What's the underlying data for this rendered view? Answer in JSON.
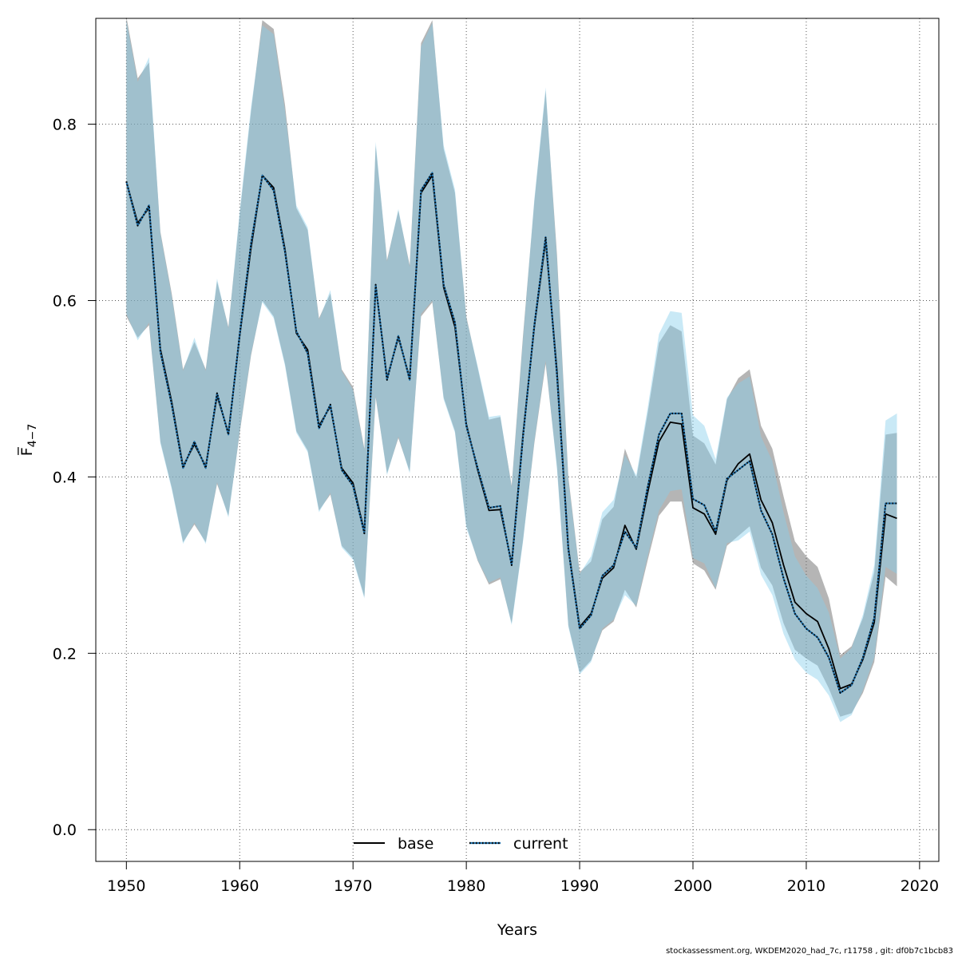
{
  "chart_data": {
    "type": "line",
    "xlabel": "Years",
    "ylabel": "F̅",
    "ylabel_sub": "4−7",
    "xlim": [
      1947.3,
      2021.7
    ],
    "ylim": [
      -0.036,
      0.92
    ],
    "x_ticks": [
      1950,
      1960,
      1970,
      1980,
      1990,
      2000,
      2010,
      2020
    ],
    "y_ticks": [
      0.0,
      0.2,
      0.4,
      0.6,
      0.8
    ],
    "y_tick_labels": [
      "0.0",
      "0.2",
      "0.4",
      "0.6",
      "0.8"
    ],
    "grid": true,
    "legend_placement": "bottom",
    "years": [
      1950,
      1951,
      1952,
      1953,
      1954,
      1955,
      1956,
      1957,
      1958,
      1959,
      1960,
      1961,
      1962,
      1963,
      1964,
      1965,
      1966,
      1967,
      1968,
      1969,
      1970,
      1971,
      1972,
      1973,
      1974,
      1975,
      1976,
      1977,
      1978,
      1979,
      1980,
      1981,
      1982,
      1983,
      1984,
      1985,
      1986,
      1987,
      1988,
      1989,
      1990,
      1991,
      1992,
      1993,
      1994,
      1995,
      1996,
      1997,
      1998,
      1999,
      2000,
      2001,
      2002,
      2003,
      2004,
      2005,
      2006,
      2007,
      2008,
      2009,
      2010,
      2011,
      2012,
      2013,
      2014,
      2015,
      2016,
      2017,
      2018
    ],
    "series": [
      {
        "name": "base",
        "color": "#000000",
        "band_color": "#6b6b6b",
        "line_style": "solid",
        "values": [
          0.735,
          0.688,
          0.705,
          0.545,
          0.485,
          0.412,
          0.437,
          0.412,
          0.492,
          0.45,
          0.56,
          0.66,
          0.742,
          0.728,
          0.658,
          0.563,
          0.544,
          0.458,
          0.48,
          0.41,
          0.393,
          0.338,
          0.617,
          0.512,
          0.558,
          0.512,
          0.722,
          0.742,
          0.615,
          0.57,
          0.46,
          0.408,
          0.362,
          0.363,
          0.302,
          0.448,
          0.57,
          0.668,
          0.52,
          0.32,
          0.23,
          0.245,
          0.285,
          0.297,
          0.345,
          0.318,
          0.382,
          0.44,
          0.462,
          0.46,
          0.365,
          0.358,
          0.335,
          0.396,
          0.415,
          0.426,
          0.374,
          0.348,
          0.3,
          0.258,
          0.245,
          0.236,
          0.205,
          0.16,
          0.165,
          0.193,
          0.235,
          0.358,
          0.353
        ],
        "lower": [
          0.582,
          0.558,
          0.572,
          0.44,
          0.388,
          0.326,
          0.346,
          0.326,
          0.392,
          0.356,
          0.45,
          0.538,
          0.6,
          0.582,
          0.528,
          0.452,
          0.43,
          0.362,
          0.38,
          0.322,
          0.308,
          0.264,
          0.49,
          0.404,
          0.444,
          0.406,
          0.582,
          0.598,
          0.49,
          0.452,
          0.345,
          0.305,
          0.278,
          0.284,
          0.234,
          0.328,
          0.438,
          0.528,
          0.412,
          0.232,
          0.178,
          0.192,
          0.226,
          0.236,
          0.272,
          0.252,
          0.305,
          0.356,
          0.372,
          0.372,
          0.302,
          0.294,
          0.272,
          0.322,
          0.333,
          0.344,
          0.297,
          0.277,
          0.234,
          0.204,
          0.194,
          0.186,
          0.16,
          0.128,
          0.132,
          0.155,
          0.19,
          0.287,
          0.276
        ],
        "upper": [
          0.922,
          0.852,
          0.87,
          0.678,
          0.608,
          0.522,
          0.553,
          0.522,
          0.622,
          0.57,
          0.698,
          0.815,
          0.918,
          0.908,
          0.822,
          0.705,
          0.68,
          0.58,
          0.608,
          0.522,
          0.502,
          0.432,
          0.776,
          0.646,
          0.702,
          0.64,
          0.892,
          0.918,
          0.772,
          0.722,
          0.582,
          0.524,
          0.465,
          0.468,
          0.39,
          0.56,
          0.712,
          0.838,
          0.652,
          0.4,
          0.292,
          0.304,
          0.352,
          0.366,
          0.432,
          0.398,
          0.472,
          0.552,
          0.572,
          0.565,
          0.447,
          0.438,
          0.414,
          0.488,
          0.512,
          0.522,
          0.458,
          0.432,
          0.378,
          0.327,
          0.31,
          0.298,
          0.262,
          0.198,
          0.208,
          0.24,
          0.292,
          0.448,
          0.45
        ]
      },
      {
        "name": "current",
        "color": "#000000",
        "dot_color": "#1f6fa8",
        "band_color": "#87ceeb",
        "line_style": "dotted",
        "values": [
          0.735,
          0.685,
          0.708,
          0.542,
          0.482,
          0.41,
          0.44,
          0.41,
          0.495,
          0.448,
          0.562,
          0.665,
          0.742,
          0.725,
          0.655,
          0.565,
          0.54,
          0.455,
          0.482,
          0.408,
          0.39,
          0.336,
          0.618,
          0.51,
          0.56,
          0.51,
          0.725,
          0.745,
          0.618,
          0.575,
          0.458,
          0.41,
          0.365,
          0.367,
          0.3,
          0.445,
          0.572,
          0.672,
          0.515,
          0.318,
          0.228,
          0.243,
          0.288,
          0.3,
          0.338,
          0.32,
          0.388,
          0.448,
          0.472,
          0.472,
          0.375,
          0.368,
          0.338,
          0.398,
          0.408,
          0.418,
          0.362,
          0.335,
          0.285,
          0.245,
          0.228,
          0.218,
          0.195,
          0.155,
          0.164,
          0.195,
          0.24,
          0.37,
          0.37
        ],
        "lower": [
          0.585,
          0.555,
          0.575,
          0.438,
          0.386,
          0.324,
          0.348,
          0.324,
          0.394,
          0.354,
          0.452,
          0.54,
          0.598,
          0.58,
          0.526,
          0.45,
          0.428,
          0.36,
          0.382,
          0.32,
          0.306,
          0.262,
          0.492,
          0.402,
          0.446,
          0.404,
          0.585,
          0.6,
          0.488,
          0.45,
          0.342,
          0.306,
          0.28,
          0.286,
          0.232,
          0.326,
          0.44,
          0.532,
          0.408,
          0.23,
          0.176,
          0.19,
          0.228,
          0.238,
          0.266,
          0.254,
          0.31,
          0.362,
          0.384,
          0.386,
          0.308,
          0.302,
          0.274,
          0.325,
          0.328,
          0.338,
          0.289,
          0.266,
          0.222,
          0.193,
          0.178,
          0.17,
          0.152,
          0.122,
          0.13,
          0.158,
          0.195,
          0.298,
          0.29
        ],
        "upper": [
          0.918,
          0.848,
          0.876,
          0.676,
          0.605,
          0.52,
          0.558,
          0.52,
          0.625,
          0.568,
          0.702,
          0.82,
          0.912,
          0.902,
          0.815,
          0.708,
          0.683,
          0.578,
          0.612,
          0.52,
          0.499,
          0.43,
          0.78,
          0.644,
          0.704,
          0.638,
          0.888,
          0.915,
          0.776,
          0.726,
          0.58,
          0.526,
          0.468,
          0.47,
          0.388,
          0.556,
          0.715,
          0.842,
          0.646,
          0.396,
          0.29,
          0.31,
          0.36,
          0.374,
          0.425,
          0.402,
          0.478,
          0.562,
          0.588,
          0.586,
          0.47,
          0.458,
          0.42,
          0.49,
          0.506,
          0.514,
          0.446,
          0.418,
          0.36,
          0.31,
          0.288,
          0.274,
          0.246,
          0.194,
          0.206,
          0.244,
          0.3,
          0.464,
          0.472
        ]
      }
    ]
  },
  "footer": {
    "text": "stockassessment.org, WKDEM2020_had_7c, r11758 , git: df0b7c1bcb83"
  }
}
